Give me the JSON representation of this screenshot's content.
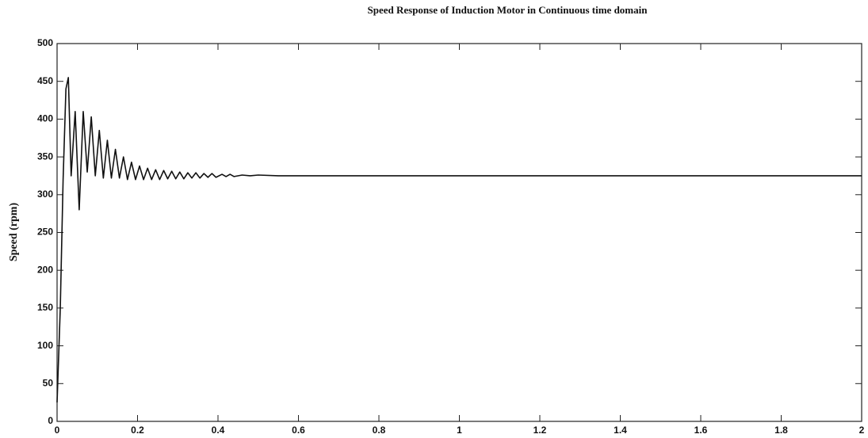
{
  "chart_data": {
    "type": "line",
    "title": "Speed Response of Induction Motor in Continuous time domain",
    "ylabel": "Speed (rpm)",
    "x": [
      0,
      0.008,
      0.015,
      0.022,
      0.028,
      0.035,
      0.045,
      0.055,
      0.065,
      0.075,
      0.085,
      0.095,
      0.105,
      0.115,
      0.125,
      0.135,
      0.145,
      0.155,
      0.165,
      0.175,
      0.185,
      0.195,
      0.205,
      0.215,
      0.225,
      0.235,
      0.245,
      0.255,
      0.265,
      0.275,
      0.285,
      0.295,
      0.305,
      0.315,
      0.325,
      0.335,
      0.345,
      0.355,
      0.365,
      0.375,
      0.385,
      0.395,
      0.41,
      0.42,
      0.43,
      0.44,
      0.46,
      0.48,
      0.5,
      0.55,
      0.6,
      2
    ],
    "values": [
      25,
      150,
      320,
      440,
      455,
      325,
      410,
      280,
      410,
      330,
      403,
      325,
      385,
      322,
      372,
      322,
      360,
      322,
      350,
      320,
      343,
      320,
      338,
      320,
      335,
      320,
      333,
      320,
      332,
      321,
      331,
      321,
      330,
      321,
      329,
      322,
      329,
      322,
      328,
      323,
      328,
      323,
      327,
      324,
      327,
      324,
      326,
      325,
      326,
      325,
      325,
      325
    ],
    "color": "#111111",
    "xlim": [
      0,
      2
    ],
    "ylim": [
      0,
      500
    ],
    "xticks": [
      0,
      0.2,
      0.4,
      0.6,
      0.8,
      1,
      1.2,
      1.4,
      1.6,
      1.8,
      2
    ],
    "yticks": [
      0,
      50,
      100,
      150,
      200,
      250,
      300,
      350,
      400,
      450,
      500
    ],
    "grid": false
  }
}
